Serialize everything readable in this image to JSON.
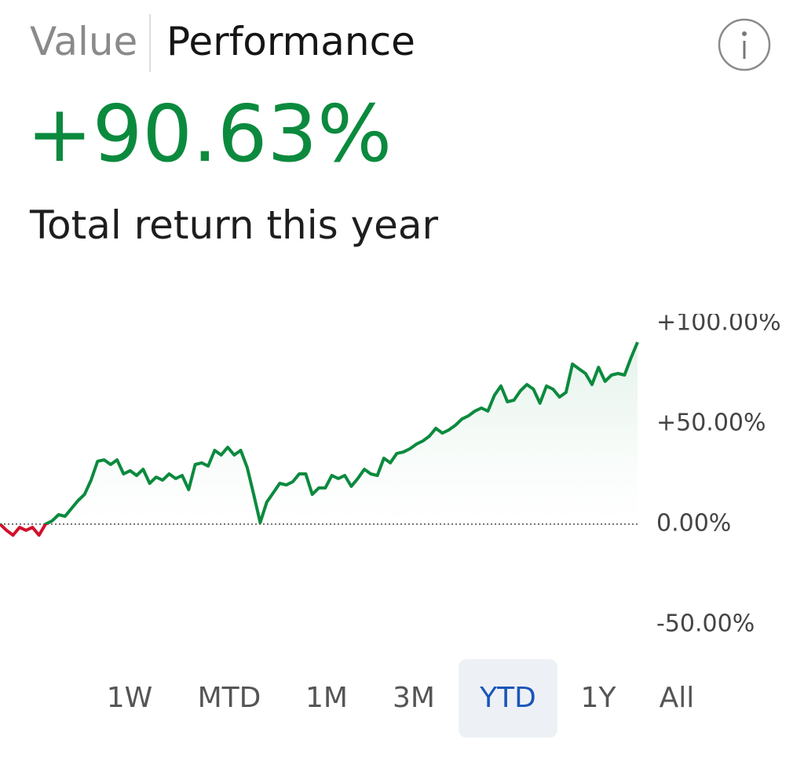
{
  "tabs": {
    "value": "Value",
    "performance": "Performance"
  },
  "headline": "+90.63%",
  "subtitle": "Total return this year",
  "chart_data": {
    "type": "line",
    "series": [
      {
        "values": [
          0,
          -3.1,
          -5.5,
          -1.6,
          -3.1,
          -1.6,
          -5.5,
          0,
          1.6,
          4.7,
          3.9,
          7.8,
          11.7,
          14.8,
          21.9,
          31.3,
          32.0,
          29.7,
          32.0,
          25.0,
          26.6,
          24.2,
          27.3,
          20.3,
          23.4,
          21.9,
          25.0,
          22.7,
          24.2,
          17.2,
          29.7,
          30.5,
          28.9,
          36.7,
          34.4,
          38.3,
          34.4,
          36.7,
          28.1,
          14.8,
          0.8,
          10.9,
          15.6,
          20.3,
          19.5,
          21.1,
          25.0,
          25.0,
          14.8,
          18.0,
          18.0,
          24.2,
          22.7,
          24.2,
          18.8,
          22.7,
          27.3,
          25.0,
          24.2,
          32.8,
          30.5,
          35.2,
          35.9,
          37.5,
          39.8,
          41.4,
          43.8,
          47.7,
          45.3,
          46.9,
          49.2,
          52.3,
          53.9,
          56.3,
          57.8,
          56.3,
          64.1,
          68.8,
          60.9,
          61.7,
          66.4,
          69.5,
          67.2,
          60.2,
          68.8,
          67.2,
          63.3,
          65.6,
          79.7,
          77.3,
          75.0,
          69.5,
          78.1,
          71.1,
          74.2,
          75.0,
          74.2,
          82.8,
          90.6
        ]
      }
    ],
    "positive_color": "#0b8a3e",
    "negative_color": "#d0112b",
    "ylim": [
      -55,
      105
    ],
    "yticks": [
      {
        "value": 100,
        "label": "+100.00%"
      },
      {
        "value": 50,
        "label": "+50.00%"
      },
      {
        "value": 0,
        "label": "0.00%"
      },
      {
        "value": -50,
        "label": "-50.00%"
      }
    ]
  },
  "ranges": [
    "1W",
    "MTD",
    "1M",
    "3M",
    "YTD",
    "1Y",
    "All"
  ],
  "selected_range_index": 4
}
